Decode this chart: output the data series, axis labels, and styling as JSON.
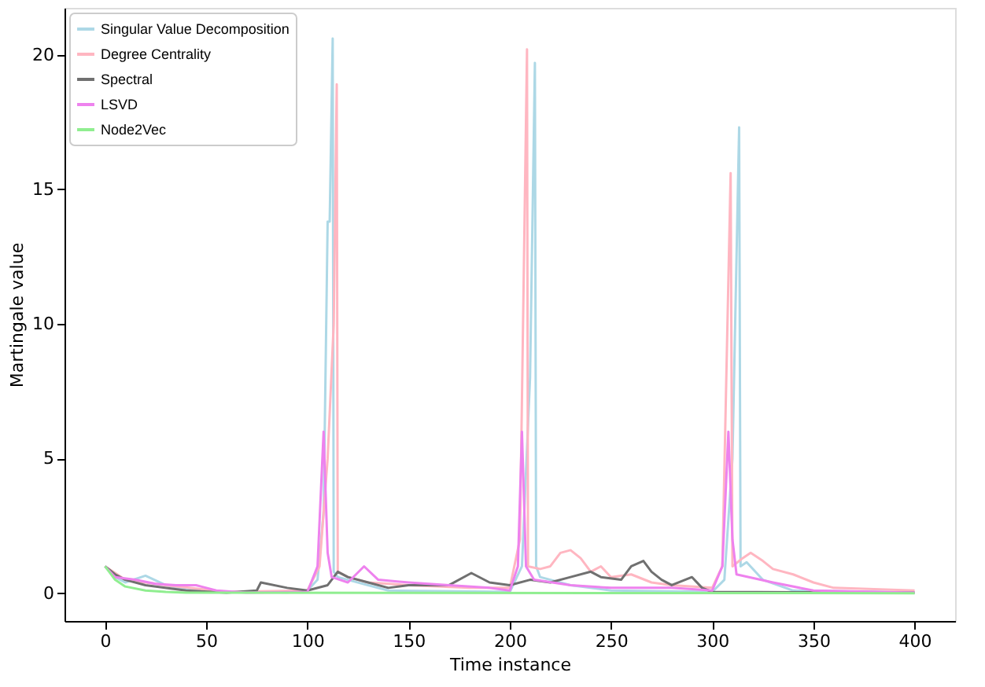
{
  "chart_data": {
    "type": "line",
    "xlabel": "Time instance",
    "ylabel": "Martingale value",
    "xlim": [
      -20,
      420
    ],
    "ylim": [
      -1.03,
      21.74
    ],
    "xticks": [
      0,
      50,
      100,
      150,
      200,
      250,
      300,
      350,
      400
    ],
    "yticks": [
      0,
      5,
      10,
      15,
      20
    ],
    "grid": false,
    "legend": "top left",
    "line_style": "solid",
    "marker": "none",
    "series": [
      {
        "name": "Singular Value Decomposition",
        "color": "#add8e6",
        "x": [
          0,
          5,
          10,
          20,
          30,
          40,
          60,
          90,
          100,
          105,
          108,
          110,
          111,
          112.5,
          113,
          115,
          120,
          130,
          140,
          200,
          206,
          210,
          212.4,
          213,
          215,
          230,
          250,
          300,
          306,
          310,
          313.3,
          314,
          317,
          325,
          340,
          400
        ],
        "values": [
          1.0,
          0.6,
          0.4,
          0.65,
          0.3,
          0.15,
          0.05,
          0.03,
          0.1,
          0.5,
          3,
          13.8,
          13.8,
          20.6,
          0.8,
          0.6,
          0.5,
          0.3,
          0.1,
          0.05,
          1,
          8,
          19.7,
          1,
          0.6,
          0.3,
          0.1,
          0.05,
          0.5,
          5,
          17.3,
          1,
          1.15,
          0.5,
          0.1,
          0.03
        ]
      },
      {
        "name": "Degree Centrality",
        "color": "#ffb6c1",
        "x": [
          0,
          10,
          30,
          60,
          100,
          106,
          110,
          113,
          114.5,
          115,
          120,
          130,
          150,
          180,
          200,
          205,
          208.5,
          209,
          215,
          220,
          225,
          230,
          235,
          240,
          245,
          250,
          260,
          270,
          280,
          300,
          305,
          309.1,
          310,
          315,
          319,
          325,
          330,
          340,
          350,
          360,
          380,
          400
        ],
        "values": [
          1,
          0.5,
          0.3,
          0.05,
          0.1,
          1,
          5,
          10,
          18.9,
          0.8,
          0.6,
          0.4,
          0.3,
          0.2,
          0.2,
          2,
          20.2,
          1,
          0.9,
          1.0,
          1.5,
          1.6,
          1.3,
          0.8,
          1.0,
          0.6,
          0.7,
          0.4,
          0.3,
          0.2,
          1,
          15.6,
          1,
          1.3,
          1.5,
          1.2,
          0.9,
          0.7,
          0.4,
          0.2,
          0.15,
          0.1
        ]
      },
      {
        "name": "Spectral",
        "color": "#707070",
        "x": [
          0,
          5,
          10,
          20,
          40,
          60,
          75,
          77,
          90,
          100,
          110,
          115,
          120,
          130,
          140,
          150,
          170,
          181,
          190,
          200,
          210,
          220,
          230,
          240,
          245,
          255,
          260,
          266,
          270,
          275,
          280,
          290,
          295,
          300,
          400
        ],
        "values": [
          1,
          0.7,
          0.5,
          0.3,
          0.1,
          0.02,
          0.1,
          0.4,
          0.2,
          0.1,
          0.3,
          0.8,
          0.6,
          0.4,
          0.2,
          0.3,
          0.3,
          0.75,
          0.4,
          0.3,
          0.5,
          0.4,
          0.6,
          0.8,
          0.6,
          0.5,
          1.0,
          1.2,
          0.8,
          0.5,
          0.3,
          0.6,
          0.2,
          0.05,
          0.02
        ]
      },
      {
        "name": "LSVD",
        "color": "#ee82ee",
        "x": [
          0,
          5,
          15,
          25,
          35,
          45,
          55,
          70,
          100,
          105,
          108,
          110,
          112,
          120,
          128,
          135,
          150,
          170,
          190,
          200,
          204,
          206,
          208,
          212,
          230,
          250,
          280,
          300,
          305,
          308,
          310,
          312,
          330,
          350,
          400
        ],
        "values": [
          1,
          0.6,
          0.5,
          0.35,
          0.3,
          0.3,
          0.1,
          0.02,
          0.05,
          1,
          6,
          1.5,
          0.6,
          0.4,
          1.0,
          0.5,
          0.4,
          0.3,
          0.2,
          0.1,
          1,
          6,
          1,
          0.5,
          0.3,
          0.2,
          0.2,
          0.1,
          1,
          6,
          2,
          0.7,
          0.4,
          0.1,
          0.02
        ]
      },
      {
        "name": "Node2Vec",
        "color": "#90ee90",
        "x": [
          0,
          5,
          10,
          20,
          30,
          40,
          400
        ],
        "values": [
          1,
          0.5,
          0.25,
          0.1,
          0.05,
          0.02,
          0
        ]
      }
    ]
  }
}
